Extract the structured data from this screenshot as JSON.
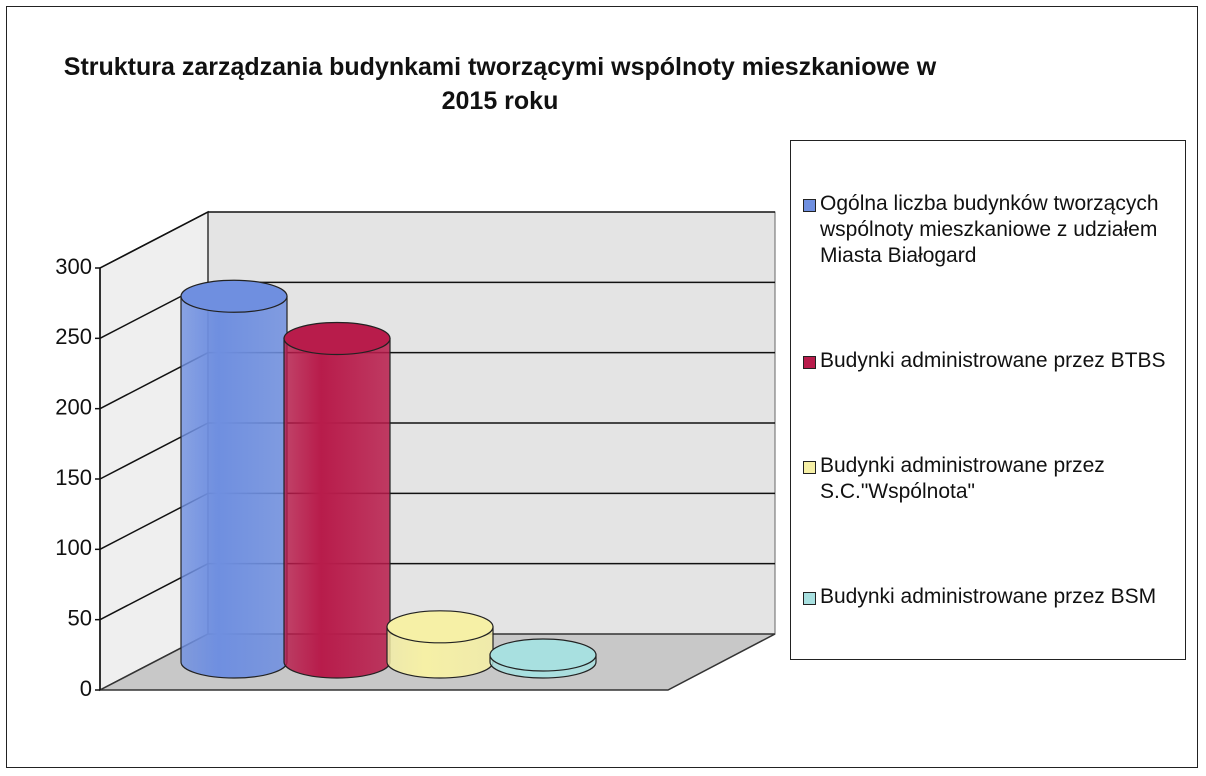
{
  "chart_data": {
    "type": "bar3d",
    "title": "Struktura zarządzania budynkami tworzącymi wspólnoty mieszkaniowe w 2015 roku",
    "categories": [
      null
    ],
    "series": [
      {
        "name": "Ogólna liczba budynków tworzących wspólnoty mieszkaniowe z udziałem Miasta Białogard",
        "color": "#6f8fe0",
        "values": [
          260
        ]
      },
      {
        "name": "Budynki administrowane przez BTBS",
        "color": "#b81c4b",
        "values": [
          230
        ]
      },
      {
        "name": "Budynki administrowane przez S.C.\"Wspólnota\"",
        "color": "#f6f0a6",
        "values": [
          25
        ]
      },
      {
        "name": "Budynki administrowane przez BSM",
        "color": "#a8e0e0",
        "values": [
          5
        ]
      }
    ],
    "ylim": [
      0,
      300
    ],
    "yticks": [
      0,
      50,
      100,
      150,
      200,
      250,
      300
    ],
    "grid": true,
    "legend": "right"
  }
}
